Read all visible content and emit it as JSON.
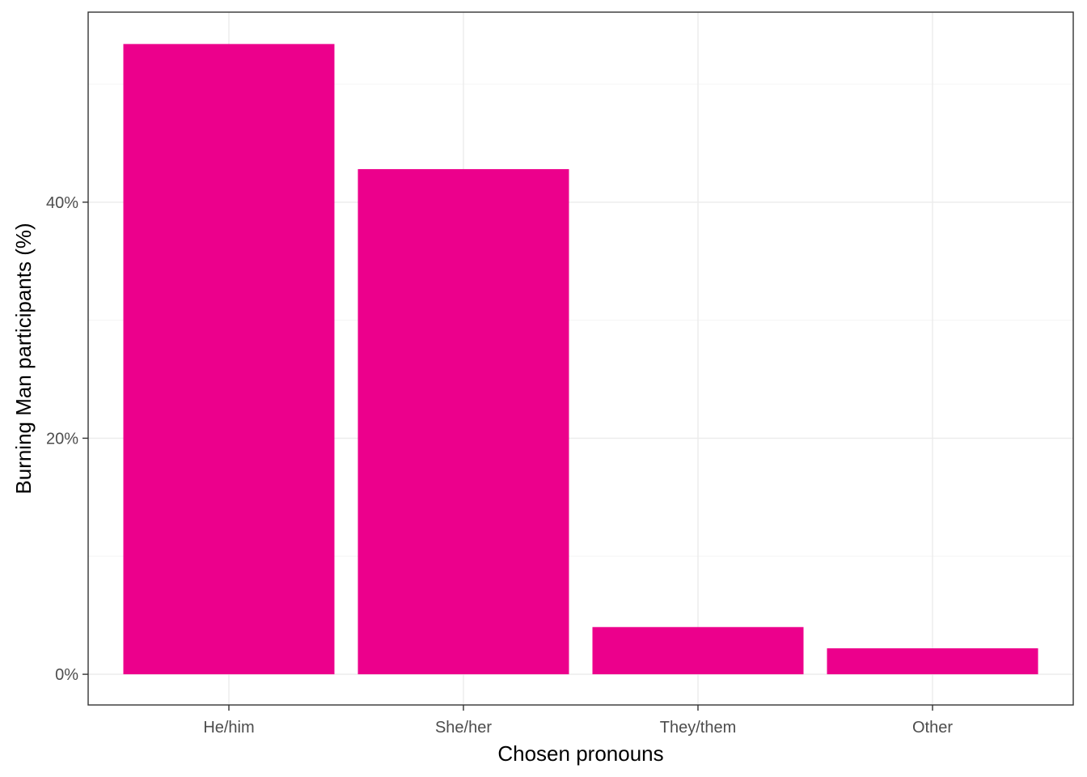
{
  "chart_data": {
    "type": "bar",
    "title": "",
    "xlabel": "Chosen pronouns",
    "ylabel": "Burning Man participants (%)",
    "categories": [
      "He/him",
      "She/her",
      "They/them",
      "Other"
    ],
    "values": [
      53.4,
      42.8,
      4.0,
      2.2
    ],
    "value_format": "percent",
    "ylim": [
      -2.6,
      56.1
    ],
    "y_ticks": [
      0,
      20,
      40
    ],
    "y_tick_labels": [
      "0%",
      "20%",
      "40%"
    ],
    "y_minor_ticks": [
      10,
      30,
      50
    ],
    "grid": true,
    "legend": "none",
    "colors": {
      "bar": "#EC008C",
      "panel_border": "#333333",
      "grid_major": "#EBEBEB",
      "grid_minor": "#F5F5F5",
      "tick_mark": "#333333"
    }
  }
}
